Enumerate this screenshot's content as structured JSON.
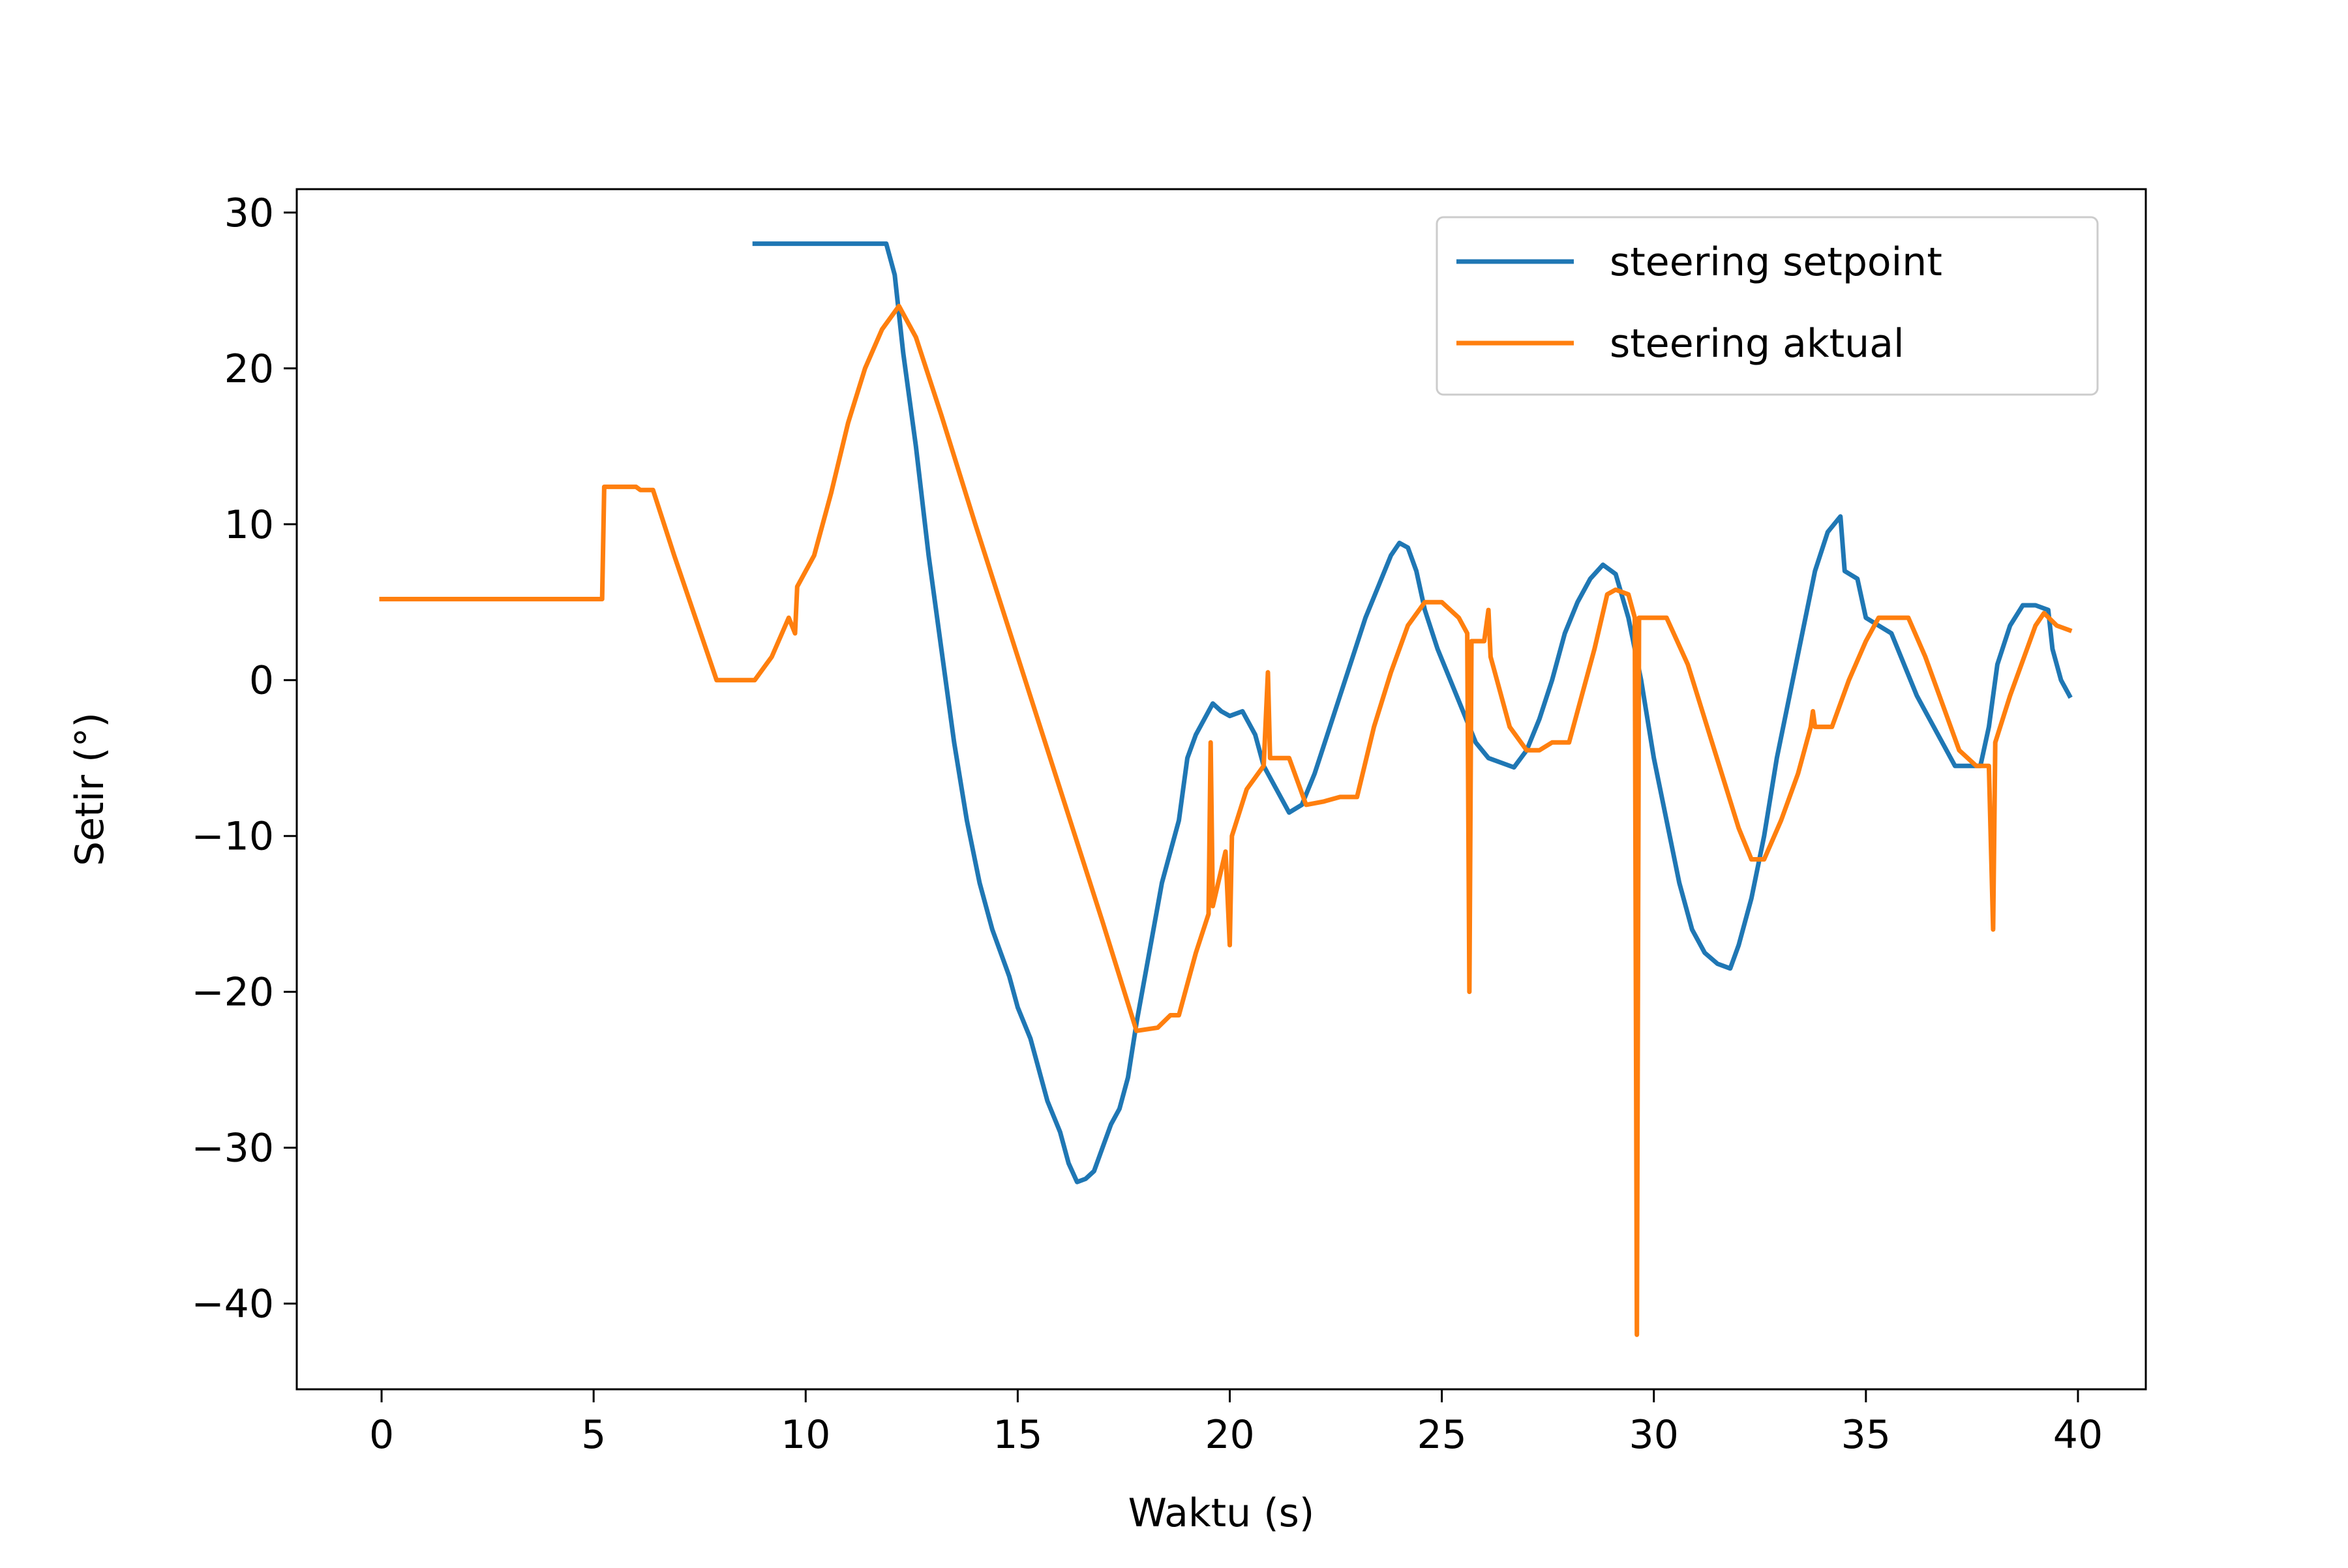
{
  "chart_data": {
    "type": "line",
    "xlabel": "Waktu (s)",
    "ylabel": "Setir (°)",
    "xlim": [
      -2,
      41.6
    ],
    "ylim": [
      -45.5,
      31.5
    ],
    "xticks": [
      0,
      5,
      10,
      15,
      20,
      25,
      30,
      35,
      40
    ],
    "yticks": [
      30,
      20,
      10,
      0,
      -10,
      -20,
      -30,
      -40
    ],
    "xtick_labels": [
      "0",
      "5",
      "10",
      "15",
      "20",
      "25",
      "30",
      "35",
      "40"
    ],
    "ytick_labels": [
      "30",
      "20",
      "10",
      "0",
      "−10",
      "−20",
      "−30",
      "−40"
    ],
    "grid": false,
    "legend": "top-right",
    "series": [
      {
        "name": "steering setpoint",
        "color": "#1f77b4",
        "points": [
          [
            8.8,
            28
          ],
          [
            11.9,
            28
          ],
          [
            12.1,
            26
          ],
          [
            12.3,
            21
          ],
          [
            12.6,
            15
          ],
          [
            12.9,
            8
          ],
          [
            13.2,
            2
          ],
          [
            13.5,
            -4
          ],
          [
            13.8,
            -9
          ],
          [
            14.1,
            -13
          ],
          [
            14.4,
            -16
          ],
          [
            14.6,
            -17.5
          ],
          [
            14.8,
            -19
          ],
          [
            15.0,
            -21
          ],
          [
            15.3,
            -23
          ],
          [
            15.5,
            -25
          ],
          [
            15.7,
            -27
          ],
          [
            16.0,
            -29
          ],
          [
            16.2,
            -31
          ],
          [
            16.4,
            -32.2
          ],
          [
            16.6,
            -32
          ],
          [
            16.8,
            -31.5
          ],
          [
            17.0,
            -30
          ],
          [
            17.2,
            -28.5
          ],
          [
            17.4,
            -27.5
          ],
          [
            17.6,
            -25.5
          ],
          [
            17.8,
            -22
          ],
          [
            18.0,
            -19
          ],
          [
            18.2,
            -16
          ],
          [
            18.4,
            -13
          ],
          [
            18.6,
            -11
          ],
          [
            18.8,
            -9
          ],
          [
            19.0,
            -5
          ],
          [
            19.2,
            -3.5
          ],
          [
            19.4,
            -2.5
          ],
          [
            19.6,
            -1.5
          ],
          [
            19.8,
            -2
          ],
          [
            20.0,
            -2.3
          ],
          [
            20.3,
            -2
          ],
          [
            20.6,
            -3.5
          ],
          [
            20.8,
            -5.5
          ],
          [
            21.1,
            -7
          ],
          [
            21.4,
            -8.5
          ],
          [
            21.7,
            -8
          ],
          [
            22.0,
            -6
          ],
          [
            22.3,
            -3.5
          ],
          [
            22.6,
            -1
          ],
          [
            22.9,
            1.5
          ],
          [
            23.2,
            4
          ],
          [
            23.5,
            6
          ],
          [
            23.8,
            8
          ],
          [
            24.0,
            8.8
          ],
          [
            24.2,
            8.5
          ],
          [
            24.4,
            7
          ],
          [
            24.6,
            4.5
          ],
          [
            24.9,
            2
          ],
          [
            25.2,
            0
          ],
          [
            25.5,
            -2
          ],
          [
            25.8,
            -4
          ],
          [
            26.1,
            -5
          ],
          [
            26.4,
            -5.3
          ],
          [
            26.7,
            -5.6
          ],
          [
            27.0,
            -4.5
          ],
          [
            27.3,
            -2.5
          ],
          [
            27.6,
            0
          ],
          [
            27.9,
            3
          ],
          [
            28.2,
            5
          ],
          [
            28.5,
            6.5
          ],
          [
            28.8,
            7.4
          ],
          [
            29.1,
            6.8
          ],
          [
            29.4,
            4
          ],
          [
            29.7,
            0
          ],
          [
            30.0,
            -5
          ],
          [
            30.3,
            -9
          ],
          [
            30.6,
            -13
          ],
          [
            30.9,
            -16
          ],
          [
            31.2,
            -17.5
          ],
          [
            31.5,
            -18.2
          ],
          [
            31.8,
            -18.5
          ],
          [
            32.0,
            -17
          ],
          [
            32.3,
            -14
          ],
          [
            32.6,
            -10
          ],
          [
            32.9,
            -5
          ],
          [
            33.2,
            -1
          ],
          [
            33.5,
            3
          ],
          [
            33.8,
            7
          ],
          [
            34.1,
            9.5
          ],
          [
            34.4,
            10.5
          ],
          [
            34.5,
            7
          ],
          [
            34.8,
            6.5
          ],
          [
            35.0,
            4
          ],
          [
            35.3,
            3.5
          ],
          [
            35.6,
            3
          ],
          [
            35.9,
            1
          ],
          [
            36.2,
            -1
          ],
          [
            36.5,
            -2.5
          ],
          [
            36.8,
            -4
          ],
          [
            37.1,
            -5.5
          ],
          [
            37.4,
            -5.5
          ],
          [
            37.7,
            -5.5
          ],
          [
            37.9,
            -3
          ],
          [
            38.1,
            1
          ],
          [
            38.4,
            3.5
          ],
          [
            38.7,
            4.8
          ],
          [
            39.0,
            4.8
          ],
          [
            39.3,
            4.5
          ],
          [
            39.4,
            2
          ],
          [
            39.6,
            0
          ],
          [
            39.8,
            -1
          ]
        ]
      },
      {
        "name": "steering aktual",
        "color": "#ff7f0e",
        "points": [
          [
            0,
            5.2
          ],
          [
            5.2,
            5.2
          ],
          [
            5.25,
            12.4
          ],
          [
            6.0,
            12.4
          ],
          [
            6.1,
            12.2
          ],
          [
            6.4,
            12.2
          ],
          [
            6.9,
            8
          ],
          [
            7.4,
            4
          ],
          [
            7.9,
            0
          ],
          [
            8.8,
            0
          ],
          [
            9.2,
            1.5
          ],
          [
            9.6,
            4
          ],
          [
            9.75,
            3
          ],
          [
            9.8,
            6
          ],
          [
            10.2,
            8
          ],
          [
            10.6,
            12
          ],
          [
            11.0,
            16.5
          ],
          [
            11.4,
            20
          ],
          [
            11.8,
            22.5
          ],
          [
            12.2,
            24
          ],
          [
            12.6,
            22
          ],
          [
            13.2,
            17
          ],
          [
            14.0,
            10
          ],
          [
            15.0,
            1.5
          ],
          [
            16.0,
            -7
          ],
          [
            17.0,
            -15.5
          ],
          [
            17.8,
            -22.5
          ],
          [
            18.3,
            -22.3
          ],
          [
            18.6,
            -21.5
          ],
          [
            18.8,
            -21.5
          ],
          [
            19.2,
            -17.5
          ],
          [
            19.5,
            -15
          ],
          [
            19.55,
            -4
          ],
          [
            19.6,
            -14.5
          ],
          [
            19.9,
            -11
          ],
          [
            20.0,
            -17
          ],
          [
            20.05,
            -10
          ],
          [
            20.4,
            -7
          ],
          [
            20.8,
            -5.5
          ],
          [
            20.9,
            0.5
          ],
          [
            20.95,
            -5
          ],
          [
            21.4,
            -5
          ],
          [
            21.8,
            -8
          ],
          [
            22.2,
            -7.8
          ],
          [
            22.6,
            -7.5
          ],
          [
            23.0,
            -7.5
          ],
          [
            23.4,
            -3
          ],
          [
            23.8,
            0.5
          ],
          [
            24.2,
            3.5
          ],
          [
            24.6,
            5
          ],
          [
            25.0,
            5
          ],
          [
            25.4,
            4
          ],
          [
            25.6,
            3
          ],
          [
            25.65,
            -20
          ],
          [
            25.7,
            2.5
          ],
          [
            26.0,
            2.5
          ],
          [
            26.1,
            4.5
          ],
          [
            26.15,
            1.5
          ],
          [
            26.6,
            -3
          ],
          [
            27.0,
            -4.5
          ],
          [
            27.3,
            -4.5
          ],
          [
            27.6,
            -4
          ],
          [
            28.0,
            -4
          ],
          [
            28.3,
            -1
          ],
          [
            28.6,
            2
          ],
          [
            28.9,
            5.5
          ],
          [
            29.1,
            5.8
          ],
          [
            29.4,
            5.5
          ],
          [
            29.55,
            4
          ],
          [
            29.6,
            -42
          ],
          [
            29.65,
            4
          ],
          [
            30.3,
            4
          ],
          [
            30.8,
            1
          ],
          [
            31.2,
            -2.5
          ],
          [
            31.6,
            -6
          ],
          [
            32.0,
            -9.5
          ],
          [
            32.3,
            -11.5
          ],
          [
            32.6,
            -11.5
          ],
          [
            33.0,
            -9
          ],
          [
            33.4,
            -6
          ],
          [
            33.7,
            -3
          ],
          [
            33.75,
            -2
          ],
          [
            33.8,
            -3
          ],
          [
            34.2,
            -3
          ],
          [
            34.6,
            0
          ],
          [
            35.0,
            2.5
          ],
          [
            35.3,
            4
          ],
          [
            35.7,
            4
          ],
          [
            36.0,
            4
          ],
          [
            36.4,
            1.5
          ],
          [
            36.8,
            -1.5
          ],
          [
            37.2,
            -4.5
          ],
          [
            37.6,
            -5.5
          ],
          [
            37.9,
            -5.5
          ],
          [
            38.0,
            -16
          ],
          [
            38.05,
            -4
          ],
          [
            38.4,
            -1
          ],
          [
            38.8,
            2
          ],
          [
            39.0,
            3.5
          ],
          [
            39.2,
            4.3
          ],
          [
            39.5,
            3.5
          ],
          [
            39.8,
            3.2
          ]
        ]
      }
    ]
  }
}
